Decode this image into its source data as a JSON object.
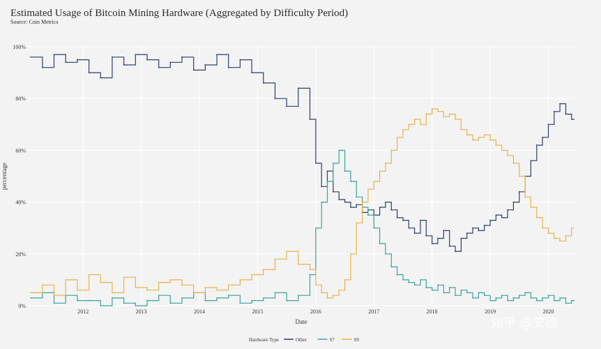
{
  "title": "Estimated Usage of Bitcoin Mining Hardware  (Aggregated by Difficulty Period)",
  "source": "Source: Coin Metrics",
  "watermark": "知乎 @安德",
  "chart_data": {
    "type": "line",
    "step": true,
    "xlabel": "Date",
    "ylabel": "percentage",
    "x_ticks": [
      "2012",
      "2013",
      "2014",
      "2015",
      "2016",
      "2017",
      "2018",
      "2019",
      "2020"
    ],
    "y_ticks": [
      "0%",
      "20%",
      "40%",
      "60%",
      "80%",
      "100%"
    ],
    "ylim": [
      0,
      100
    ],
    "grid": true,
    "legend": {
      "title": "Hardware Type",
      "position": "bottom-center"
    },
    "colors": {
      "Other": "#2c3e6b",
      "S7": "#3aa39a",
      "S9": "#e8b24a"
    },
    "x": [
      2011.1,
      2011.3,
      2011.5,
      2011.7,
      2011.9,
      2012.1,
      2012.3,
      2012.5,
      2012.7,
      2012.9,
      2013.1,
      2013.3,
      2013.5,
      2013.7,
      2013.9,
      2014.1,
      2014.3,
      2014.5,
      2014.7,
      2014.9,
      2015.1,
      2015.3,
      2015.5,
      2015.7,
      2015.9,
      2016.0,
      2016.1,
      2016.2,
      2016.3,
      2016.4,
      2016.5,
      2016.6,
      2016.7,
      2016.8,
      2016.9,
      2017.0,
      2017.1,
      2017.2,
      2017.3,
      2017.4,
      2017.5,
      2017.6,
      2017.7,
      2017.8,
      2017.9,
      2018.0,
      2018.1,
      2018.2,
      2018.3,
      2018.4,
      2018.5,
      2018.6,
      2018.7,
      2018.8,
      2018.9,
      2019.0,
      2019.1,
      2019.2,
      2019.3,
      2019.4,
      2019.5,
      2019.6,
      2019.7,
      2019.8,
      2019.9,
      2020.0,
      2020.1,
      2020.2,
      2020.3,
      2020.4
    ],
    "series": [
      {
        "name": "Other",
        "values": [
          96,
          92,
          97,
          94,
          95,
          90,
          88,
          96,
          93,
          97,
          95,
          92,
          94,
          96,
          91,
          93,
          97,
          92,
          95,
          90,
          86,
          80,
          77,
          84,
          72,
          55,
          46,
          52,
          44,
          41,
          40,
          38,
          39,
          36,
          37,
          35,
          38,
          40,
          37,
          34,
          33,
          30,
          28,
          33,
          27,
          24,
          26,
          29,
          23,
          21,
          26,
          28,
          30,
          29,
          31,
          33,
          35,
          34,
          37,
          40,
          44,
          50,
          56,
          62,
          65,
          70,
          75,
          78,
          74,
          72
        ]
      },
      {
        "name": "S7",
        "values": [
          3,
          5,
          1,
          4,
          2,
          2,
          0,
          3,
          1,
          0,
          2,
          4,
          1,
          3,
          5,
          2,
          3,
          4,
          1,
          2,
          3,
          5,
          2,
          4,
          12,
          30,
          40,
          48,
          55,
          60,
          52,
          48,
          42,
          38,
          35,
          30,
          24,
          20,
          15,
          12,
          10,
          9,
          8,
          10,
          7,
          6,
          8,
          5,
          7,
          4,
          6,
          5,
          3,
          5,
          4,
          2,
          3,
          4,
          2,
          3,
          4,
          5,
          3,
          2,
          3,
          4,
          2,
          3,
          1,
          2
        ]
      },
      {
        "name": "S9",
        "values": [
          5,
          8,
          4,
          10,
          6,
          12,
          9,
          5,
          11,
          7,
          6,
          9,
          10,
          8,
          5,
          7,
          6,
          8,
          10,
          12,
          14,
          18,
          21,
          16,
          14,
          8,
          5,
          3,
          4,
          6,
          10,
          20,
          32,
          40,
          45,
          48,
          52,
          55,
          60,
          65,
          68,
          70,
          72,
          70,
          74,
          76,
          75,
          73,
          74,
          72,
          68,
          66,
          64,
          65,
          66,
          64,
          62,
          60,
          58,
          55,
          50,
          42,
          38,
          34,
          30,
          28,
          26,
          25,
          27,
          30
        ]
      }
    ]
  }
}
